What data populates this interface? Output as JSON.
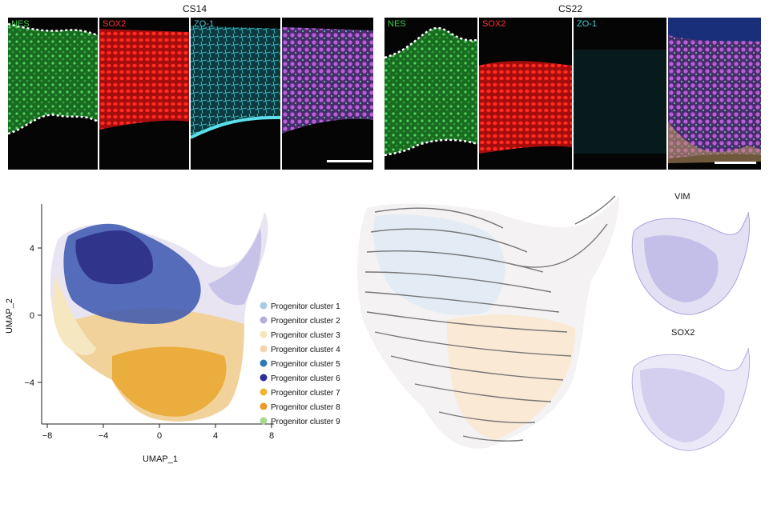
{
  "micrographs": {
    "stages": [
      {
        "title": "CS14",
        "panels": [
          "NES",
          "SOX2",
          "ZO-1",
          ""
        ]
      },
      {
        "title": "CS22",
        "panels": [
          "NES",
          "SOX2",
          "ZO-1",
          ""
        ]
      }
    ],
    "label_colors": {
      "NES": "#3dcc4a",
      "SOX2": "#ff3030",
      "ZO-1": "#3ec9d6"
    }
  },
  "umap": {
    "xlabel": "UMAP_1",
    "ylabel": "UMAP_2",
    "xticks": [
      "−8",
      "−4",
      "0",
      "4",
      "8"
    ],
    "yticks": [
      "4",
      "0",
      "−4"
    ]
  },
  "legend": [
    {
      "label": "Progenitor cluster 1",
      "color": "#a9cbe6"
    },
    {
      "label": "Progenitor cluster 2",
      "color": "#b4b0dc"
    },
    {
      "label": "Progenitor cluster 3",
      "color": "#f4e6b6"
    },
    {
      "label": "Progenitor cluster 4",
      "color": "#f5d3ac"
    },
    {
      "label": "Progenitor cluster 5",
      "color": "#2f79b3"
    },
    {
      "label": "Progenitor cluster 6",
      "color": "#2e2d9a"
    },
    {
      "label": "Progenitor cluster 7",
      "color": "#efb52f"
    },
    {
      "label": "Progenitor cluster 8",
      "color": "#ec9a2a"
    },
    {
      "label": "Progenitor cluster 9",
      "color": "#a9d88e"
    }
  ],
  "feature_plots": [
    {
      "gene": "VIM"
    },
    {
      "gene": "SOX2"
    }
  ]
}
